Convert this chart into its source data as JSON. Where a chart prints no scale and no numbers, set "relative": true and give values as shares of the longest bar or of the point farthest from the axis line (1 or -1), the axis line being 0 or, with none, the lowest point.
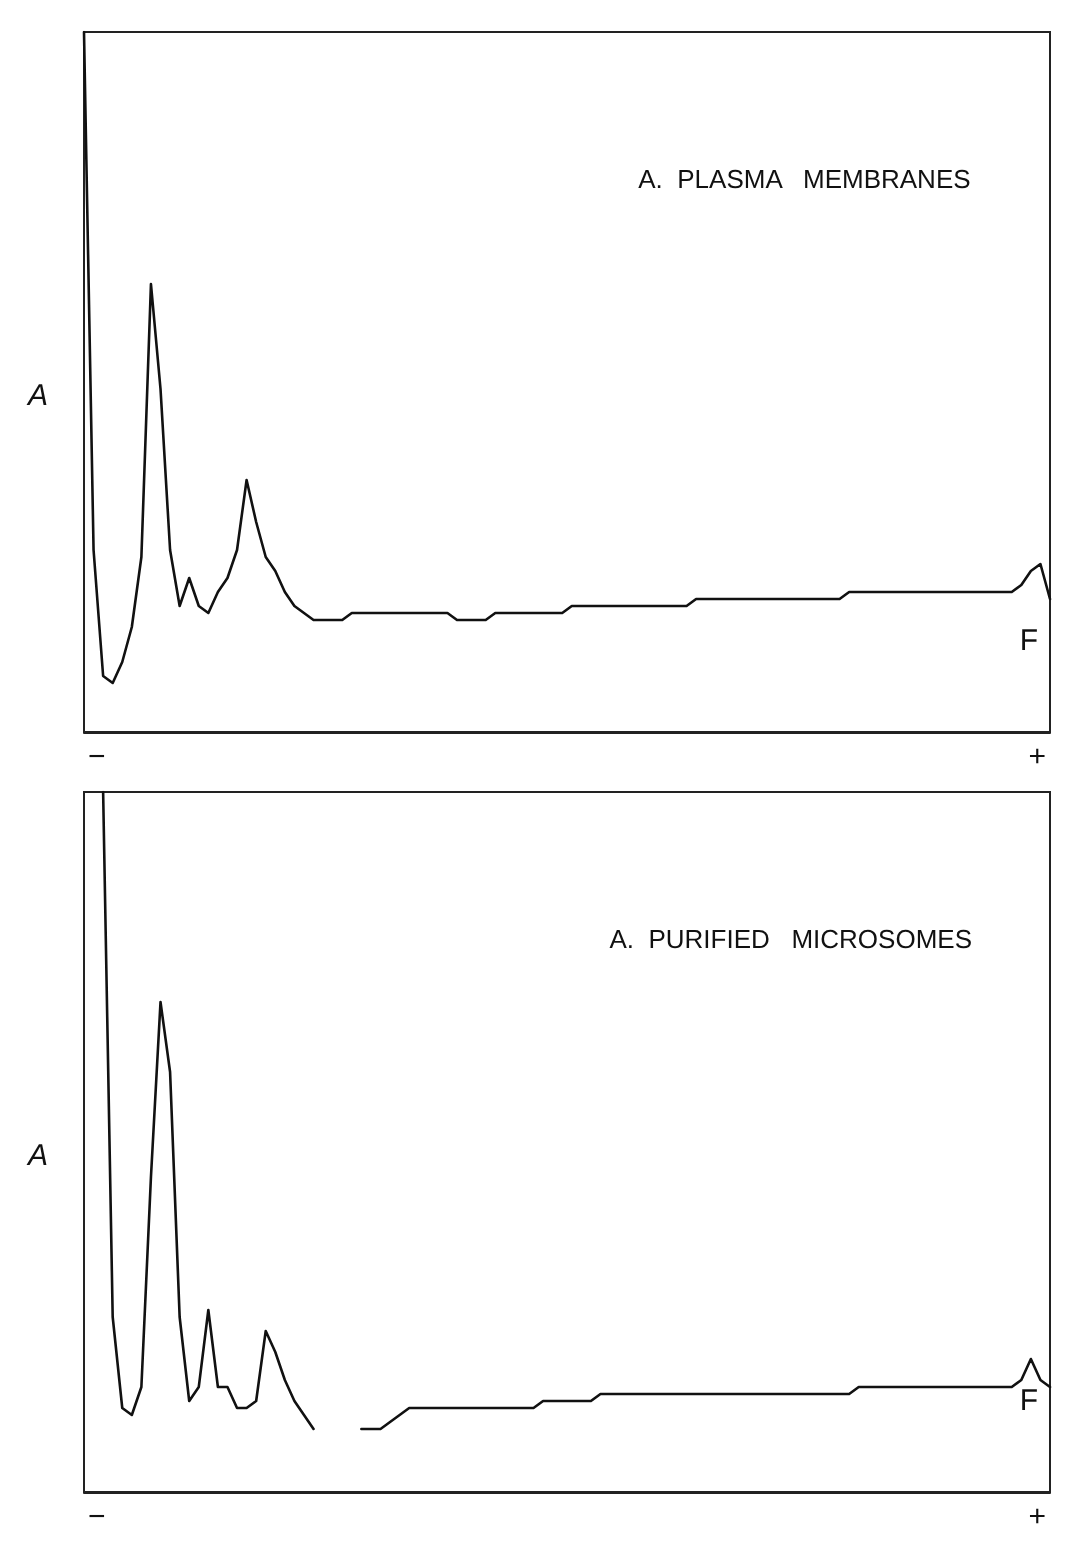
{
  "chart_data": [
    {
      "type": "line",
      "title": "A.  PLASMA   MEMBRANES",
      "ylabel": "A",
      "relative": true,
      "annotations": [
        "−",
        "+",
        "F"
      ],
      "categories": [
        null,
        null,
        null,
        null,
        null,
        null,
        null,
        null,
        null,
        null,
        null,
        null,
        null,
        null,
        null,
        null,
        null,
        null,
        null,
        null,
        null,
        null,
        null,
        null,
        null,
        null,
        null,
        null,
        null,
        null,
        null,
        null,
        null,
        null,
        null,
        null,
        null,
        null,
        null,
        null,
        null,
        null,
        null,
        null,
        null,
        null,
        null,
        null,
        null,
        null,
        null,
        null,
        null,
        null,
        null,
        null,
        null,
        null,
        null,
        null,
        null,
        null,
        null,
        null,
        null,
        null,
        null,
        null,
        null,
        null,
        null,
        null,
        null,
        null,
        null,
        null,
        null,
        null,
        null,
        null,
        null,
        null,
        null,
        null,
        null,
        null,
        null,
        null,
        null,
        null,
        null,
        null,
        null,
        null,
        null,
        null,
        null,
        null,
        null,
        null,
        null,
        null
      ],
      "series": [
        {
          "color": "#111111",
          "values": [
            1,
            0.26,
            0.08,
            0.07,
            0.1,
            0.15,
            0.25,
            0.64,
            0.49,
            0.26,
            0.18,
            0.22,
            0.18,
            0.17,
            0.2,
            0.22,
            0.26,
            0.36,
            0.3,
            0.25,
            0.23,
            0.2,
            0.18,
            0.17,
            0.16,
            0.16,
            0.16,
            0.16,
            0.17,
            0.17,
            0.17,
            0.17,
            0.17,
            0.17,
            0.17,
            0.17,
            0.17,
            0.17,
            0.17,
            0.16,
            0.16,
            0.16,
            0.16,
            0.17,
            0.17,
            0.17,
            0.17,
            0.17,
            0.17,
            0.17,
            0.17,
            0.18,
            0.18,
            0.18,
            0.18,
            0.18,
            0.18,
            0.18,
            0.18,
            0.18,
            0.18,
            0.18,
            0.18,
            0.18,
            0.19,
            0.19,
            0.19,
            0.19,
            0.19,
            0.19,
            0.19,
            0.19,
            0.19,
            0.19,
            0.19,
            0.19,
            0.19,
            0.19,
            0.19,
            0.19,
            0.2,
            0.2,
            0.2,
            0.2,
            0.2,
            0.2,
            0.2,
            0.2,
            0.2,
            0.2,
            0.2,
            0.2,
            0.2,
            0.2,
            0.2,
            0.2,
            0.2,
            0.2,
            0.21,
            0.23,
            0.24,
            0.19
          ]
        }
      ]
    },
    {
      "type": "line",
      "title": "A.  PURIFIED   MICROSOMES",
      "ylabel": "A",
      "relative": true,
      "annotations": [
        "−",
        "+",
        "F"
      ],
      "categories": [
        null,
        null,
        null,
        null,
        null,
        null,
        null,
        null,
        null,
        null,
        null,
        null,
        null,
        null,
        null,
        null,
        null,
        null,
        null,
        null,
        null,
        null,
        null,
        null,
        null,
        null,
        null,
        null,
        null,
        null,
        null,
        null,
        null,
        null,
        null,
        null,
        null,
        null,
        null,
        null,
        null,
        null,
        null,
        null,
        null,
        null,
        null,
        null,
        null,
        null,
        null,
        null,
        null,
        null,
        null,
        null,
        null,
        null,
        null,
        null,
        null,
        null,
        null,
        null,
        null,
        null,
        null,
        null,
        null,
        null,
        null,
        null,
        null,
        null,
        null,
        null,
        null,
        null,
        null,
        null,
        null,
        null,
        null,
        null,
        null,
        null,
        null,
        null,
        null,
        null,
        null,
        null,
        null,
        null,
        null,
        null,
        null,
        null,
        null,
        null,
        null,
        null
      ],
      "series": [
        {
          "color": "#111111",
          "values": [
            null,
            null,
            1,
            0.25,
            0.12,
            0.11,
            0.15,
            0.45,
            0.7,
            0.6,
            0.25,
            0.13,
            0.15,
            0.26,
            0.15,
            0.15,
            0.12,
            0.12,
            0.13,
            0.23,
            0.2,
            0.16,
            0.13,
            0.11,
            0.09,
            null,
            null,
            null,
            null,
            0.09,
            0.09,
            0.09,
            0.1,
            0.11,
            0.12,
            0.12,
            0.12,
            0.12,
            0.12,
            0.12,
            0.12,
            0.12,
            0.12,
            0.12,
            0.12,
            0.12,
            0.12,
            0.12,
            0.13,
            0.13,
            0.13,
            0.13,
            0.13,
            0.13,
            0.14,
            0.14,
            0.14,
            0.14,
            0.14,
            0.14,
            0.14,
            0.14,
            0.14,
            0.14,
            0.14,
            0.14,
            0.14,
            0.14,
            0.14,
            0.14,
            0.14,
            0.14,
            0.14,
            0.14,
            0.14,
            0.14,
            0.14,
            0.14,
            0.14,
            0.14,
            0.14,
            0.15,
            0.15,
            0.15,
            0.15,
            0.15,
            0.15,
            0.15,
            0.15,
            0.15,
            0.15,
            0.15,
            0.15,
            0.15,
            0.15,
            0.15,
            0.15,
            0.15,
            0.16,
            0.19,
            0.16,
            0.15
          ]
        }
      ]
    }
  ]
}
